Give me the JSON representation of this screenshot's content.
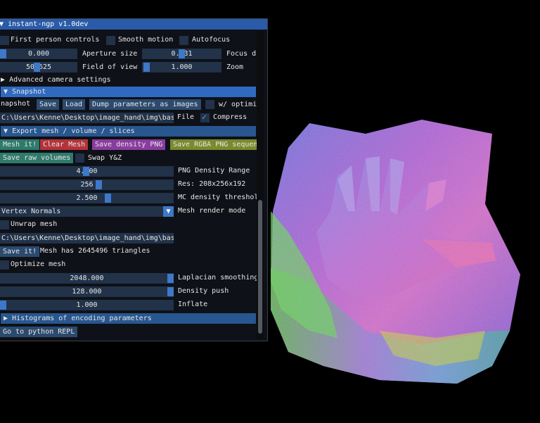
{
  "window": {
    "title": "instant-ngp v1.0dev"
  },
  "camera": {
    "first_person": "First person controls",
    "smooth_motion": "Smooth motion",
    "autofocus": "Autofocus",
    "aperture_value": "0.000",
    "aperture_label": "Aperture size",
    "focus_value": "0.031",
    "focus_label": "Focus d",
    "fov_value": "50.625",
    "fov_label": "Field of view",
    "zoom_value": "1.000",
    "zoom_label": "Zoom",
    "advanced": "Advanced camera settings"
  },
  "snapshot": {
    "header": "Snapshot",
    "label": "napshot",
    "save": "Save",
    "load": "Load",
    "dump": "Dump parameters as images",
    "w_optim": "w/ optimi",
    "path": "C:\\Users\\Kenne\\Desktop\\image_hand\\img\\base",
    "file_label": "File",
    "compress": "Compress"
  },
  "export": {
    "header": "Export mesh / volume / slices",
    "mesh_it": "Mesh it!",
    "clear_mesh": "Clear Mesh",
    "save_density_png": "Save density PNG",
    "save_rgba": "Save RGBA PNG sequen",
    "save_raw": "Save raw volumes",
    "swap": "Swap Y&Z",
    "range_value": "4.000",
    "range_label": "PNG Density Range",
    "res_value": "256",
    "res_label": "Res: 208x256x192",
    "mc_value": "2.500",
    "mc_label": "MC density threshol",
    "render_mode_value": "Vertex Normals",
    "render_mode_label": "Mesh render mode",
    "unwrap": "Unwrap mesh",
    "mesh_path": "C:\\Users\\Kenne\\Desktop\\image_hand\\img\\base",
    "save_it": "Save it!",
    "mesh_info": "Mesh has 2645496 triangles",
    "optimize": "Optimize mesh",
    "laplacian_value": "2048.000",
    "laplacian_label": "Laplacian smoothing",
    "density_push_value": "128.000",
    "density_push_label": "Density push",
    "inflate_value": "1.000",
    "inflate_label": "Inflate"
  },
  "histograms": "Histograms of encoding parameters",
  "python_repl": "Go to python REPL",
  "colors": {
    "header": "#28568f",
    "title": "#2a5ba8",
    "frame": "#213249",
    "accent": "#3d78c9"
  },
  "icons": {
    "collapse": "triangle-down-icon",
    "expand": "triangle-right-icon",
    "check": "checkmark-icon",
    "combo": "chevron-down-icon"
  }
}
